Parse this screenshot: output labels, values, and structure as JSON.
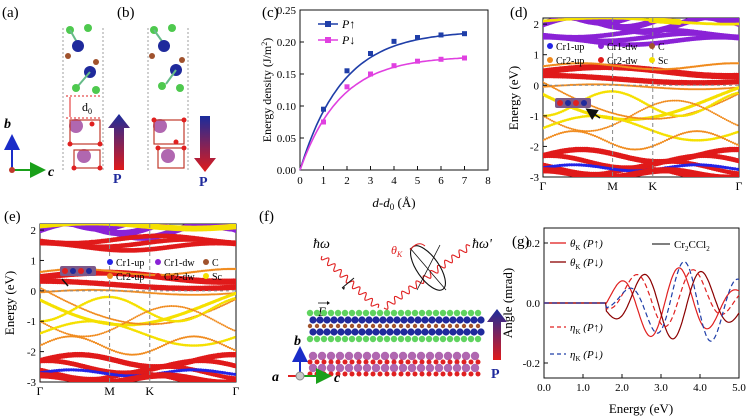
{
  "panels": {
    "a": {
      "letter": "(a)",
      "axis_b": "b",
      "axis_c": "c",
      "gap_label": "d",
      "gap_sub": "0",
      "pol": "P"
    },
    "b": {
      "letter": "(b)",
      "pol": "P"
    },
    "c": {
      "letter": "(c)"
    },
    "d": {
      "letter": "(d)"
    },
    "e": {
      "letter": "(e)"
    },
    "f": {
      "letter": "(f)",
      "hw_in": "ħω",
      "hw_out": "ħω'",
      "theta": "θ",
      "theta_sub": "K",
      "efield": "E",
      "axis_a": "a",
      "axis_b": "b",
      "axis_c": "c",
      "pol": "P"
    },
    "g": {
      "letter": "(g)"
    }
  },
  "bands_legend": {
    "items": [
      {
        "label": "Cr1-up",
        "color": "#2424e6"
      },
      {
        "label": "Cr1-dw",
        "color": "#8a22d6"
      },
      {
        "label": "C",
        "color": "#a0522d"
      },
      {
        "label": "Cr2-up",
        "color": "#f08a1c"
      },
      {
        "label": "Cr2-dw",
        "color": "#e01a1a"
      },
      {
        "label": "Sc",
        "color": "#f5e000"
      }
    ]
  },
  "colors": {
    "blue": "#1f3ea8",
    "magenta": "#e040e0",
    "red": "#e02020",
    "darkred": "#8b0000",
    "dash_blue": "#1f3ea8"
  },
  "chart_data": [
    {
      "panel": "c",
      "type": "line",
      "xlabel": "d-d0 (Å)",
      "ylabel": "Energy density (J/m²)",
      "xlim": [
        0,
        8
      ],
      "ylim": [
        0,
        0.25
      ],
      "xticks": [
        "0",
        "1",
        "2",
        "3",
        "4",
        "5",
        "6",
        "7",
        "8"
      ],
      "yticks": [
        "0.00",
        "0.05",
        "0.10",
        "0.15",
        "0.20",
        "0.25"
      ],
      "legend": [
        "P↑",
        "P↓"
      ],
      "series": [
        {
          "name": "P↑",
          "color": "#1f3ea8",
          "x": [
            0,
            1,
            2,
            3,
            4,
            5,
            6,
            7
          ],
          "values": [
            0,
            0.095,
            0.155,
            0.182,
            0.201,
            0.207,
            0.211,
            0.213
          ]
        },
        {
          "name": "P↓",
          "color": "#e040e0",
          "x": [
            0,
            1,
            2,
            3,
            4,
            5,
            6,
            7
          ],
          "values": [
            0,
            0.075,
            0.13,
            0.15,
            0.163,
            0.17,
            0.173,
            0.175
          ]
        }
      ]
    },
    {
      "panel": "d",
      "type": "scatter",
      "ylabel": "Energy (eV)",
      "ylim": [
        -3,
        2.2
      ],
      "yticks": [
        "-3",
        "-2",
        "-1",
        "0",
        "1",
        "2"
      ],
      "kpoints": [
        "Γ",
        "M",
        "K",
        "Γ"
      ]
    },
    {
      "panel": "e",
      "type": "scatter",
      "ylabel": "Energy (eV)",
      "ylim": [
        -3,
        2.2
      ],
      "yticks": [
        "-3",
        "-2",
        "-1",
        "0",
        "1",
        "2"
      ],
      "kpoints": [
        "Γ",
        "M",
        "K",
        "Γ"
      ]
    },
    {
      "panel": "g",
      "type": "line",
      "xlabel": "Energy (eV)",
      "ylabel": "Angle (mrad)",
      "xlim": [
        0,
        5
      ],
      "ylim": [
        -0.25,
        0.25
      ],
      "xticks": [
        "0.0",
        "1.0",
        "2.0",
        "3.0",
        "4.0",
        "5.0"
      ],
      "yticks": [
        "-0.2",
        "0.0",
        "0.2"
      ],
      "legend_title": "Cr₂CCl₂",
      "series": [
        {
          "name": "θK (P↑)",
          "style": "solid",
          "color": "#e02020"
        },
        {
          "name": "θK (P↓)",
          "style": "solid",
          "color": "#8b0000"
        },
        {
          "name": "ηK (P↑)",
          "style": "dashed",
          "color": "#e02020"
        },
        {
          "name": "ηK (P↓)",
          "style": "dashed",
          "color": "#1f3ea8"
        }
      ]
    }
  ],
  "legend_g": {
    "title": "Cr",
    "title_sub1": "2",
    "title_mid": "CCl",
    "title_sub2": "2",
    "items": [
      {
        "sym": "θ",
        "sub": "K",
        "arg": "(P↑)"
      },
      {
        "sym": "θ",
        "sub": "K",
        "arg": "(P↓)"
      },
      {
        "sym": "η",
        "sub": "K",
        "arg": "(P↑)"
      },
      {
        "sym": "η",
        "sub": "K",
        "arg": "(P↓)"
      }
    ]
  }
}
